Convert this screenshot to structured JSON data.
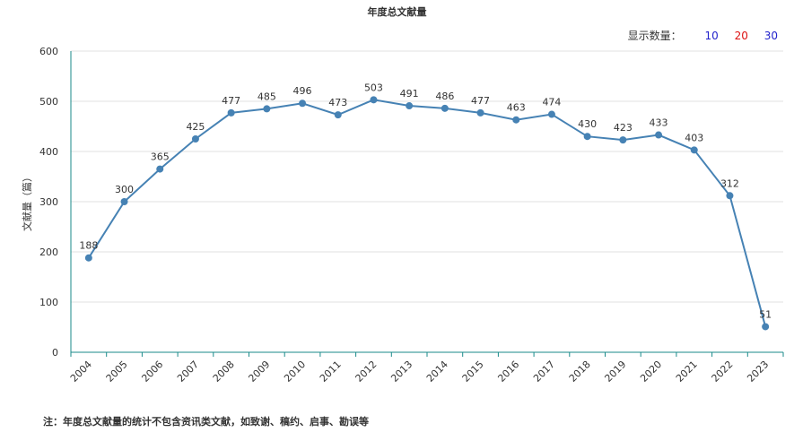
{
  "header": {
    "title": "年度总文献量",
    "count_label": "显示数量：",
    "count_options": [
      {
        "label": "10",
        "color": "#2222cc"
      },
      {
        "label": "20",
        "color": "#dd1111"
      },
      {
        "label": "30",
        "color": "#2222cc"
      }
    ]
  },
  "footer": {
    "note": "注：年度总文献量的统计不包含资讯类文献，如致谢、稿约、启事、勘误等"
  },
  "colors": {
    "line": "#4682b4",
    "axis": "#1a8a8a",
    "grid": "#e0e0e0"
  },
  "chart_data": {
    "type": "line",
    "title": "年度总文献量",
    "ylabel": "文献量（篇）",
    "xlabel": "",
    "ylim": [
      0,
      600
    ],
    "yticks": [
      0,
      100,
      200,
      300,
      400,
      500,
      600
    ],
    "categories": [
      "2004",
      "2005",
      "2006",
      "2007",
      "2008",
      "2009",
      "2010",
      "2011",
      "2012",
      "2013",
      "2014",
      "2015",
      "2016",
      "2017",
      "2018",
      "2019",
      "2020",
      "2021",
      "2022",
      "2023"
    ],
    "series": [
      {
        "values": [
          188,
          300,
          365,
          425,
          477,
          485,
          496,
          473,
          503,
          491,
          486,
          477,
          463,
          474,
          430,
          423,
          433,
          403,
          312,
          51
        ]
      }
    ],
    "grid": true
  }
}
